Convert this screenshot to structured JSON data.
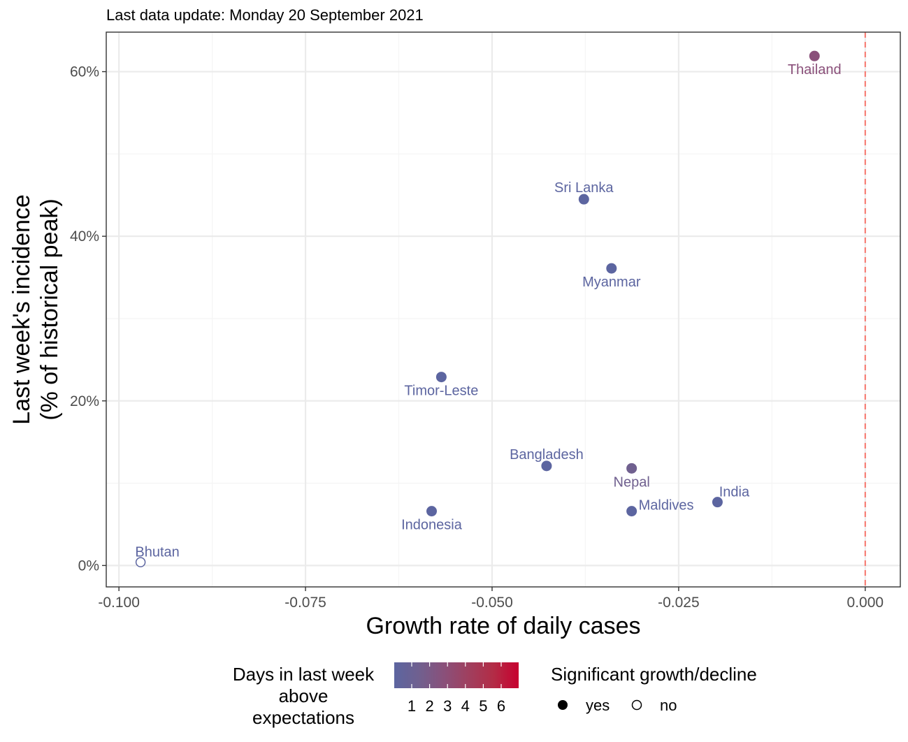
{
  "chart_data": {
    "type": "scatter",
    "subtitle": "Last data update: Monday 20 September 2021",
    "xlabel": "Growth rate of daily cases",
    "ylabel_line1": "Last week's incidence",
    "ylabel_line2": "(% of historical peak)",
    "xlim": [
      -0.1017,
      0.0047
    ],
    "ylim": [
      -2.6,
      64.8
    ],
    "x_ticks": [
      -0.1,
      -0.075,
      -0.05,
      -0.025,
      0.0
    ],
    "x_tick_labels": [
      "-0.100",
      "-0.075",
      "-0.050",
      "-0.025",
      "0.000"
    ],
    "y_ticks": [
      0,
      20,
      40,
      60
    ],
    "y_tick_labels": [
      "0%",
      "20%",
      "40%",
      "60%"
    ],
    "x_minor_ticks": [
      -0.0875,
      -0.0625,
      -0.0375,
      -0.0125
    ],
    "y_minor_ticks": [
      10,
      30,
      50
    ],
    "reference_line_x": 0.0,
    "points": [
      {
        "name": "Thailand",
        "x": -0.0068,
        "y": 61.9,
        "days": 3,
        "significant": true,
        "label_pos": "below"
      },
      {
        "name": "Sri Lanka",
        "x": -0.0377,
        "y": 44.5,
        "days": 1,
        "significant": true,
        "label_pos": "above"
      },
      {
        "name": "Myanmar",
        "x": -0.034,
        "y": 36.1,
        "days": 1,
        "significant": true,
        "label_pos": "below"
      },
      {
        "name": "Timor-Leste",
        "x": -0.0568,
        "y": 22.9,
        "days": 1,
        "significant": true,
        "label_pos": "below"
      },
      {
        "name": "Bangladesh",
        "x": -0.0427,
        "y": 12.1,
        "days": 1,
        "significant": true,
        "label_pos": "above"
      },
      {
        "name": "Nepal",
        "x": -0.0313,
        "y": 11.8,
        "days": 2,
        "significant": true,
        "label_pos": "below"
      },
      {
        "name": "India",
        "x": -0.0198,
        "y": 7.7,
        "days": 1,
        "significant": true,
        "label_pos": "above-right"
      },
      {
        "name": "Maldives",
        "x": -0.0313,
        "y": 6.6,
        "days": 1,
        "significant": true,
        "label_pos": "right"
      },
      {
        "name": "Indonesia",
        "x": -0.0581,
        "y": 6.6,
        "days": 1,
        "significant": true,
        "label_pos": "below"
      },
      {
        "name": "Bhutan",
        "x": -0.0971,
        "y": 0.4,
        "days": 1,
        "significant": false,
        "label_pos": "above-right"
      }
    ],
    "legend_color": {
      "title_lines": [
        "Days in last week",
        "above",
        "expectations"
      ],
      "labels": [
        "1",
        "2",
        "3",
        "4",
        "5",
        "6"
      ],
      "colors": [
        "#5c65a0",
        "#70608f",
        "#8a507a",
        "#a03f5e",
        "#b32c46",
        "#c7002f"
      ]
    },
    "legend_shape": {
      "title": "Significant growth/decline",
      "items": [
        {
          "label": "yes",
          "filled": true
        },
        {
          "label": "no",
          "filled": false
        }
      ]
    }
  },
  "colors": {
    "panel_border": "#333333",
    "grid_major": "#ebebeb",
    "grid_minor": "#f5f5f5",
    "ref_line": "#f8766d",
    "tick": "#333333"
  }
}
